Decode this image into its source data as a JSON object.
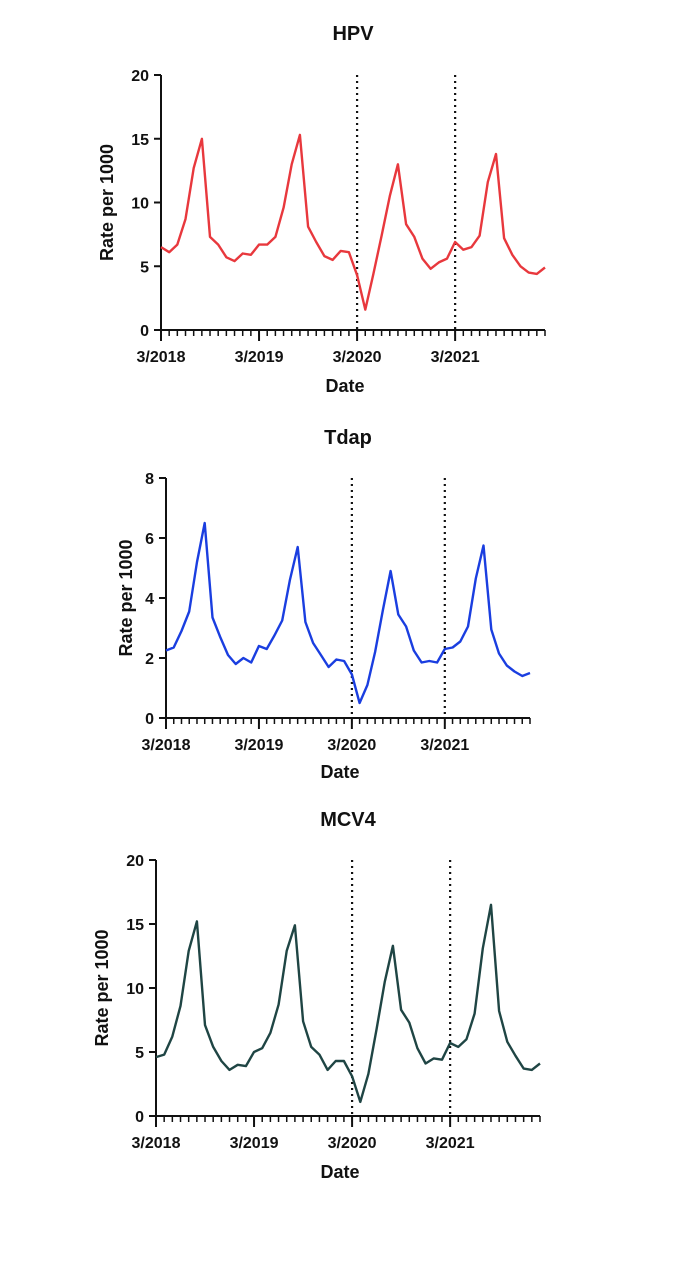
{
  "chart_data": [
    {
      "type": "line",
      "title": "HPV",
      "xlabel": "Date",
      "ylabel": "Rate per 1000",
      "ylim": [
        0,
        20
      ],
      "yticks": [
        0,
        5,
        10,
        15,
        20
      ],
      "xticks": [
        "3/2018",
        "3/2019",
        "3/2020",
        "3/2021"
      ],
      "vlines": [
        "3/2020",
        "3/2021"
      ],
      "grid": false,
      "color": "#e8383d",
      "x": [
        "3/2018",
        "4/2018",
        "5/2018",
        "6/2018",
        "7/2018",
        "8/2018",
        "9/2018",
        "10/2018",
        "11/2018",
        "12/2018",
        "1/2019",
        "2/2019",
        "3/2019",
        "4/2019",
        "5/2019",
        "6/2019",
        "7/2019",
        "8/2019",
        "9/2019",
        "10/2019",
        "11/2019",
        "12/2019",
        "1/2020",
        "2/2020",
        "3/2020",
        "4/2020",
        "5/2020",
        "6/2020",
        "7/2020",
        "8/2020",
        "9/2020",
        "10/2020",
        "11/2020",
        "12/2020",
        "1/2021",
        "2/2021",
        "3/2021",
        "4/2021",
        "5/2021",
        "6/2021",
        "7/2021",
        "8/2021",
        "9/2021",
        "10/2021",
        "11/2021",
        "12/2021",
        "1/2022",
        "2/2022"
      ],
      "values": [
        6.5,
        6.1,
        6.7,
        8.7,
        12.7,
        15.0,
        7.3,
        6.7,
        5.7,
        5.4,
        6.0,
        5.9,
        6.7,
        6.7,
        7.3,
        9.6,
        13.0,
        15.3,
        8.1,
        6.9,
        5.8,
        5.5,
        6.2,
        6.1,
        4.3,
        1.6,
        4.4,
        7.4,
        10.5,
        13.0,
        8.3,
        7.3,
        5.6,
        4.8,
        5.3,
        5.6,
        6.9,
        6.3,
        6.5,
        7.4,
        11.6,
        13.8,
        7.2,
        5.9,
        5.0,
        4.5,
        4.4,
        4.9
      ]
    },
    {
      "type": "line",
      "title": "Tdap",
      "xlabel": "Date",
      "ylabel": "Rate per 1000",
      "ylim": [
        0,
        8
      ],
      "yticks": [
        0,
        2,
        4,
        6,
        8
      ],
      "xticks": [
        "3/2018",
        "3/2019",
        "3/2020",
        "3/2021"
      ],
      "vlines": [
        "3/2020",
        "3/2021"
      ],
      "grid": false,
      "color": "#1a3ee0",
      "x": [
        "3/2018",
        "4/2018",
        "5/2018",
        "6/2018",
        "7/2018",
        "8/2018",
        "9/2018",
        "10/2018",
        "11/2018",
        "12/2018",
        "1/2019",
        "2/2019",
        "3/2019",
        "4/2019",
        "5/2019",
        "6/2019",
        "7/2019",
        "8/2019",
        "9/2019",
        "10/2019",
        "11/2019",
        "12/2019",
        "1/2020",
        "2/2020",
        "3/2020",
        "4/2020",
        "5/2020",
        "6/2020",
        "7/2020",
        "8/2020",
        "9/2020",
        "10/2020",
        "11/2020",
        "12/2020",
        "1/2021",
        "2/2021",
        "3/2021",
        "4/2021",
        "5/2021",
        "6/2021",
        "7/2021",
        "8/2021",
        "9/2021",
        "10/2021",
        "11/2021",
        "12/2021",
        "1/2022",
        "2/2022"
      ],
      "values": [
        2.25,
        2.35,
        2.9,
        3.55,
        5.2,
        6.5,
        3.35,
        2.7,
        2.1,
        1.8,
        2.0,
        1.85,
        2.4,
        2.3,
        2.75,
        3.25,
        4.6,
        5.7,
        3.2,
        2.5,
        2.1,
        1.7,
        1.95,
        1.9,
        1.45,
        0.5,
        1.1,
        2.2,
        3.6,
        4.9,
        3.45,
        3.05,
        2.25,
        1.85,
        1.9,
        1.85,
        2.3,
        2.35,
        2.55,
        3.05,
        4.65,
        5.75,
        2.95,
        2.15,
        1.75,
        1.55,
        1.4,
        1.5
      ]
    },
    {
      "type": "line",
      "title": "MCV4",
      "xlabel": "Date",
      "ylabel": "Rate per 1000",
      "ylim": [
        0,
        20
      ],
      "yticks": [
        0,
        5,
        10,
        15,
        20
      ],
      "xticks": [
        "3/2018",
        "3/2019",
        "3/2020",
        "3/2021"
      ],
      "vlines": [
        "3/2020",
        "3/2021"
      ],
      "grid": false,
      "color": "#1f4544",
      "x": [
        "3/2018",
        "4/2018",
        "5/2018",
        "6/2018",
        "7/2018",
        "8/2018",
        "9/2018",
        "10/2018",
        "11/2018",
        "12/2018",
        "1/2019",
        "2/2019",
        "3/2019",
        "4/2019",
        "5/2019",
        "6/2019",
        "7/2019",
        "8/2019",
        "9/2019",
        "10/2019",
        "11/2019",
        "12/2019",
        "1/2020",
        "2/2020",
        "3/2020",
        "4/2020",
        "5/2020",
        "6/2020",
        "7/2020",
        "8/2020",
        "9/2020",
        "10/2020",
        "11/2020",
        "12/2020",
        "1/2021",
        "2/2021",
        "3/2021",
        "4/2021",
        "5/2021",
        "6/2021",
        "7/2021",
        "8/2021",
        "9/2021",
        "10/2021",
        "11/2021",
        "12/2021",
        "1/2022",
        "2/2022"
      ],
      "values": [
        4.6,
        4.8,
        6.2,
        8.6,
        12.9,
        15.2,
        7.1,
        5.4,
        4.3,
        3.6,
        4.0,
        3.9,
        5.0,
        5.3,
        6.5,
        8.7,
        12.9,
        14.9,
        7.4,
        5.4,
        4.8,
        3.6,
        4.3,
        4.3,
        3.1,
        1.1,
        3.3,
        6.8,
        10.5,
        13.3,
        8.3,
        7.3,
        5.3,
        4.1,
        4.5,
        4.4,
        5.7,
        5.4,
        6.0,
        8.0,
        13.1,
        16.5,
        8.2,
        5.8,
        4.7,
        3.7,
        3.6,
        4.1
      ]
    }
  ]
}
